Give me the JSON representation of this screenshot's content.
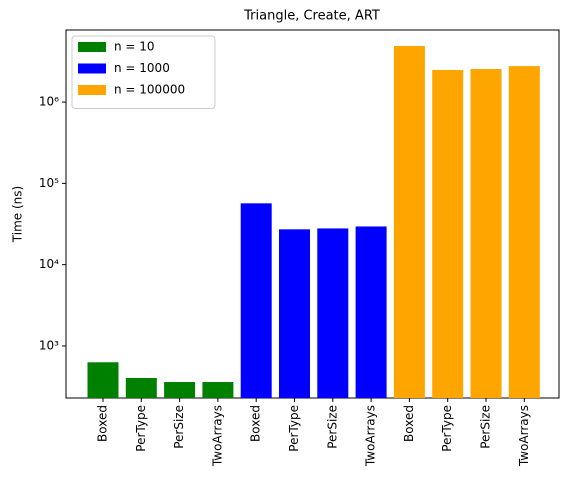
{
  "chart_data": {
    "type": "bar",
    "title": "Triangle, Create, ART",
    "y_label": "Time (ns)",
    "categories": [
      "Boxed",
      "PerType",
      "PerSize",
      "TwoArrays",
      "Boxed",
      "PerType",
      "PerSize",
      "TwoArrays",
      "Boxed",
      "PerType",
      "PerSize",
      "TwoArrays"
    ],
    "series": [
      {
        "name": "n = 10",
        "color": "#008000",
        "values": [
          630,
          404,
          360,
          360,
          null,
          null,
          null,
          null,
          null,
          null,
          null,
          null
        ]
      },
      {
        "name": "n = 1000",
        "color": "#0000ff",
        "values": [
          null,
          null,
          null,
          null,
          56800,
          27200,
          27900,
          29500,
          null,
          null,
          null,
          null
        ]
      },
      {
        "name": "n = 100000",
        "color": "#ffa500",
        "values": [
          null,
          null,
          null,
          null,
          null,
          null,
          null,
          null,
          4890000,
          2480000,
          2550000,
          2770000
        ]
      }
    ],
    "log_y": true,
    "ylim": [
      229,
      7700000
    ],
    "yticks": [
      {
        "value": 1000,
        "label": "10³"
      },
      {
        "value": 10000,
        "label": "10⁴"
      },
      {
        "value": 100000,
        "label": "10⁵"
      },
      {
        "value": 1000000,
        "label": "10⁶"
      }
    ],
    "legend": "upper left"
  }
}
